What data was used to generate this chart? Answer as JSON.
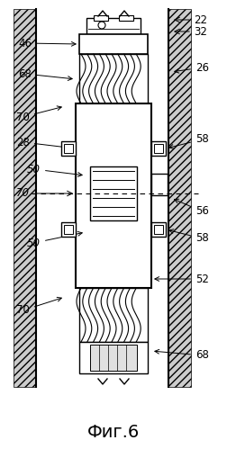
{
  "title": "Фиг.6",
  "title_fontsize": 14,
  "background_color": "#ffffff",
  "fig_w": 2.52,
  "fig_h": 4.99,
  "dpi": 100
}
